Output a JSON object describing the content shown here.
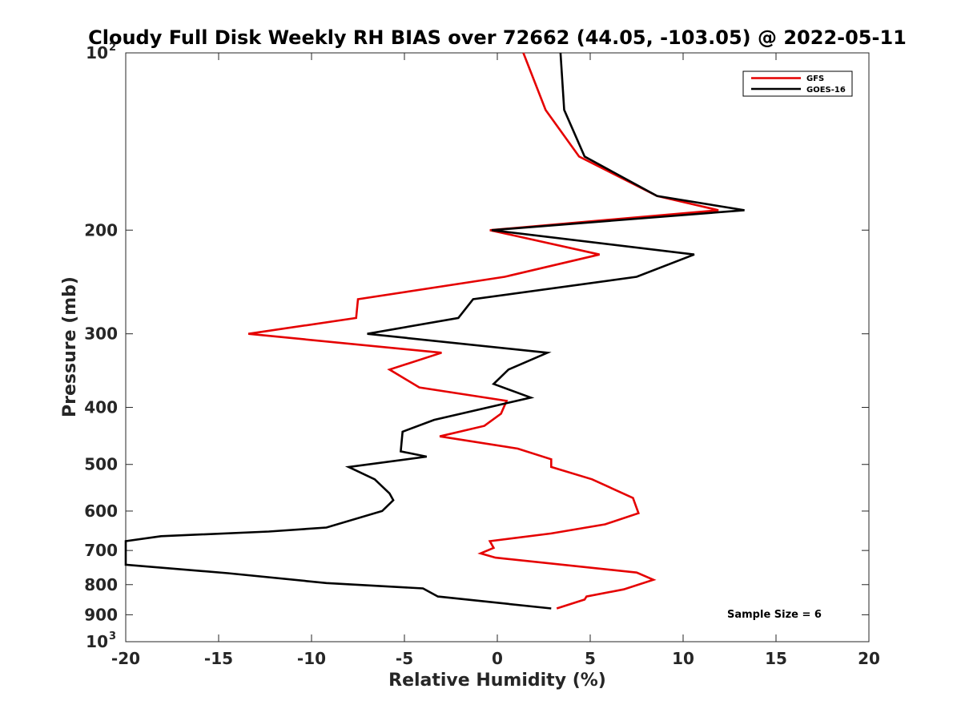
{
  "chart_data": {
    "type": "line",
    "title": "Cloudy Full Disk Weekly RH BIAS over 72662 (44.05, -103.05) @ 2022-05-11",
    "xlabel": "Relative Humidity (%)",
    "ylabel": "Pressure (mb)",
    "xlim": [
      -20,
      20
    ],
    "ylim": [
      100,
      1000
    ],
    "yscale": "log",
    "yreversed": true,
    "grid": false,
    "x_ticks": [
      -20,
      -15,
      -10,
      -5,
      0,
      5,
      10,
      15,
      20
    ],
    "x_tick_labels": [
      "-20",
      "-15",
      "-10",
      "-5",
      "0",
      "5",
      "10",
      "15",
      "20"
    ],
    "y_ticks": [
      100,
      200,
      300,
      400,
      500,
      600,
      700,
      800,
      900,
      1000
    ],
    "y_tick_labels": [
      "10^2",
      "200",
      "300",
      "400",
      "500",
      "600",
      "700",
      "800",
      "900",
      "10^3"
    ],
    "legend_position": "top-right",
    "annotation": "Sample Size = 6",
    "series": [
      {
        "name": "GFS",
        "color": "#e50000",
        "points": [
          [
            1.4,
            100
          ],
          [
            2.6,
            125
          ],
          [
            4.4,
            150
          ],
          [
            8.6,
            175
          ],
          [
            11.9,
            185
          ],
          [
            -0.4,
            200
          ],
          [
            5.5,
            220
          ],
          [
            0.4,
            240
          ],
          [
            -7.5,
            262
          ],
          [
            -7.6,
            282
          ],
          [
            -13.4,
            300
          ],
          [
            -3.0,
            323
          ],
          [
            -5.8,
            345
          ],
          [
            -4.2,
            370
          ],
          [
            0.5,
            390
          ],
          [
            0.2,
            410
          ],
          [
            -0.7,
            430
          ],
          [
            -3.1,
            448
          ],
          [
            1.1,
            470
          ],
          [
            2.9,
            490
          ],
          [
            2.9,
            505
          ],
          [
            5.1,
            530
          ],
          [
            7.3,
            570
          ],
          [
            7.6,
            605
          ],
          [
            5.8,
            632
          ],
          [
            2.9,
            655
          ],
          [
            -0.4,
            675
          ],
          [
            -0.2,
            693
          ],
          [
            -0.9,
            708
          ],
          [
            -0.1,
            720
          ],
          [
            7.5,
            763
          ],
          [
            8.4,
            785
          ],
          [
            6.8,
            815
          ],
          [
            4.8,
            838
          ],
          [
            4.7,
            848
          ],
          [
            3.2,
            878
          ]
        ]
      },
      {
        "name": "GOES-16",
        "color": "#000000",
        "points": [
          [
            3.4,
            100
          ],
          [
            3.6,
            125
          ],
          [
            4.7,
            150
          ],
          [
            8.6,
            175
          ],
          [
            13.3,
            185
          ],
          [
            -0.3,
            200
          ],
          [
            10.6,
            220
          ],
          [
            7.5,
            240
          ],
          [
            -1.3,
            262
          ],
          [
            -2.1,
            282
          ],
          [
            -7.0,
            300
          ],
          [
            2.7,
            323
          ],
          [
            0.6,
            345
          ],
          [
            -0.2,
            365
          ],
          [
            1.8,
            385
          ],
          [
            -3.4,
            420
          ],
          [
            -5.1,
            440
          ],
          [
            -5.2,
            475
          ],
          [
            -3.8,
            485
          ],
          [
            -8.0,
            505
          ],
          [
            -6.6,
            530
          ],
          [
            -5.8,
            560
          ],
          [
            -5.6,
            575
          ],
          [
            -6.2,
            600
          ],
          [
            -9.2,
            640
          ],
          [
            -12.3,
            650
          ],
          [
            -18.1,
            662
          ],
          [
            -20.0,
            675
          ],
          [
            -20.0,
            740
          ],
          [
            -14.5,
            765
          ],
          [
            -9.2,
            795
          ],
          [
            -4.0,
            812
          ],
          [
            -3.2,
            838
          ],
          [
            2.9,
            878
          ]
        ]
      }
    ]
  }
}
